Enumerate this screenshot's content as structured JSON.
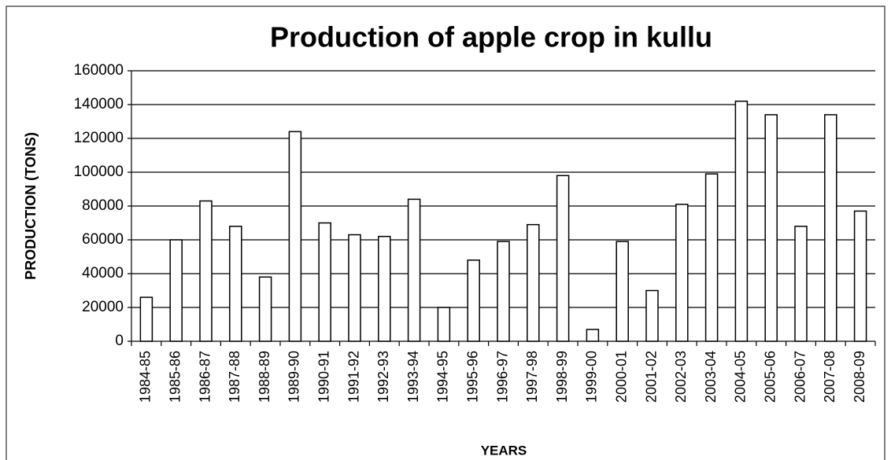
{
  "chart_data": {
    "type": "bar",
    "title": "Production of apple crop in kullu",
    "x_label": "YEARS",
    "y_label": "PRODUCTION (TONS)",
    "categories": [
      "1984-85",
      "1985-86",
      "1986-87",
      "1987-88",
      "1988-89",
      "1989-90",
      "1990-91",
      "1991-92",
      "1992-93",
      "1993-94",
      "1994-95",
      "1995-96",
      "1996-97",
      "1997-98",
      "1998-99",
      "1999-00",
      "2000-01",
      "2001-02",
      "2002-03",
      "2003-04",
      "2004-05",
      "2005-06",
      "2006-07",
      "2007-08",
      "2008-09"
    ],
    "values": [
      26000,
      60000,
      83000,
      68000,
      38000,
      124000,
      70000,
      63000,
      62000,
      84000,
      20000,
      48000,
      59000,
      69000,
      98000,
      7000,
      59000,
      30000,
      81000,
      99000,
      142000,
      134000,
      68000,
      134000,
      77000
    ],
    "color": "#ffffff",
    "ylim": [
      0,
      160000
    ],
    "yticks": [
      0,
      20000,
      40000,
      60000,
      80000,
      100000,
      120000,
      140000,
      160000
    ],
    "grid": true
  }
}
